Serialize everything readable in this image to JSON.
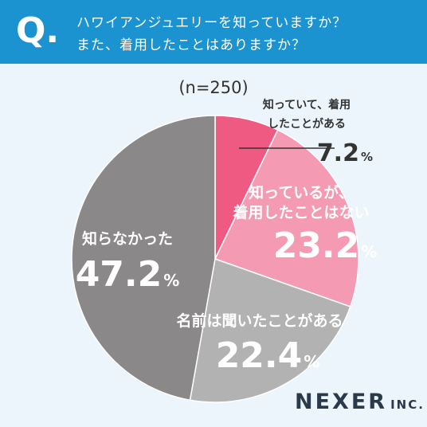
{
  "header": {
    "q_mark": "Q.",
    "question_line1": "ハワイアンジュエリーを知っていますか？",
    "question_line2": "また、着用したことはありますか？"
  },
  "sample_label": "(n=250)",
  "colors": {
    "header_bg": "#1c93d1",
    "background": "#ecf5fb",
    "slice_1": "#ee5a82",
    "slice_2": "#f59ab3",
    "slice_3": "#b2b2b2",
    "slice_4": "#8b8889"
  },
  "chart_data": {
    "type": "pie",
    "unit": "%",
    "slices": [
      {
        "label_lines": [
          "知っていて、着用",
          "したことがある"
        ],
        "value": 7.2,
        "value_text": "7.2"
      },
      {
        "label_lines": [
          "知っているが、",
          "着用したことはない"
        ],
        "value": 23.2,
        "value_text": "23.2"
      },
      {
        "label_lines": [
          "名前は聞いたことがある"
        ],
        "value": 22.4,
        "value_text": "22.4"
      },
      {
        "label_lines": [
          "知らなかった"
        ],
        "value": 47.2,
        "value_text": "47.2"
      }
    ]
  },
  "logo": {
    "main": "NEXER",
    "sub": "INC."
  }
}
